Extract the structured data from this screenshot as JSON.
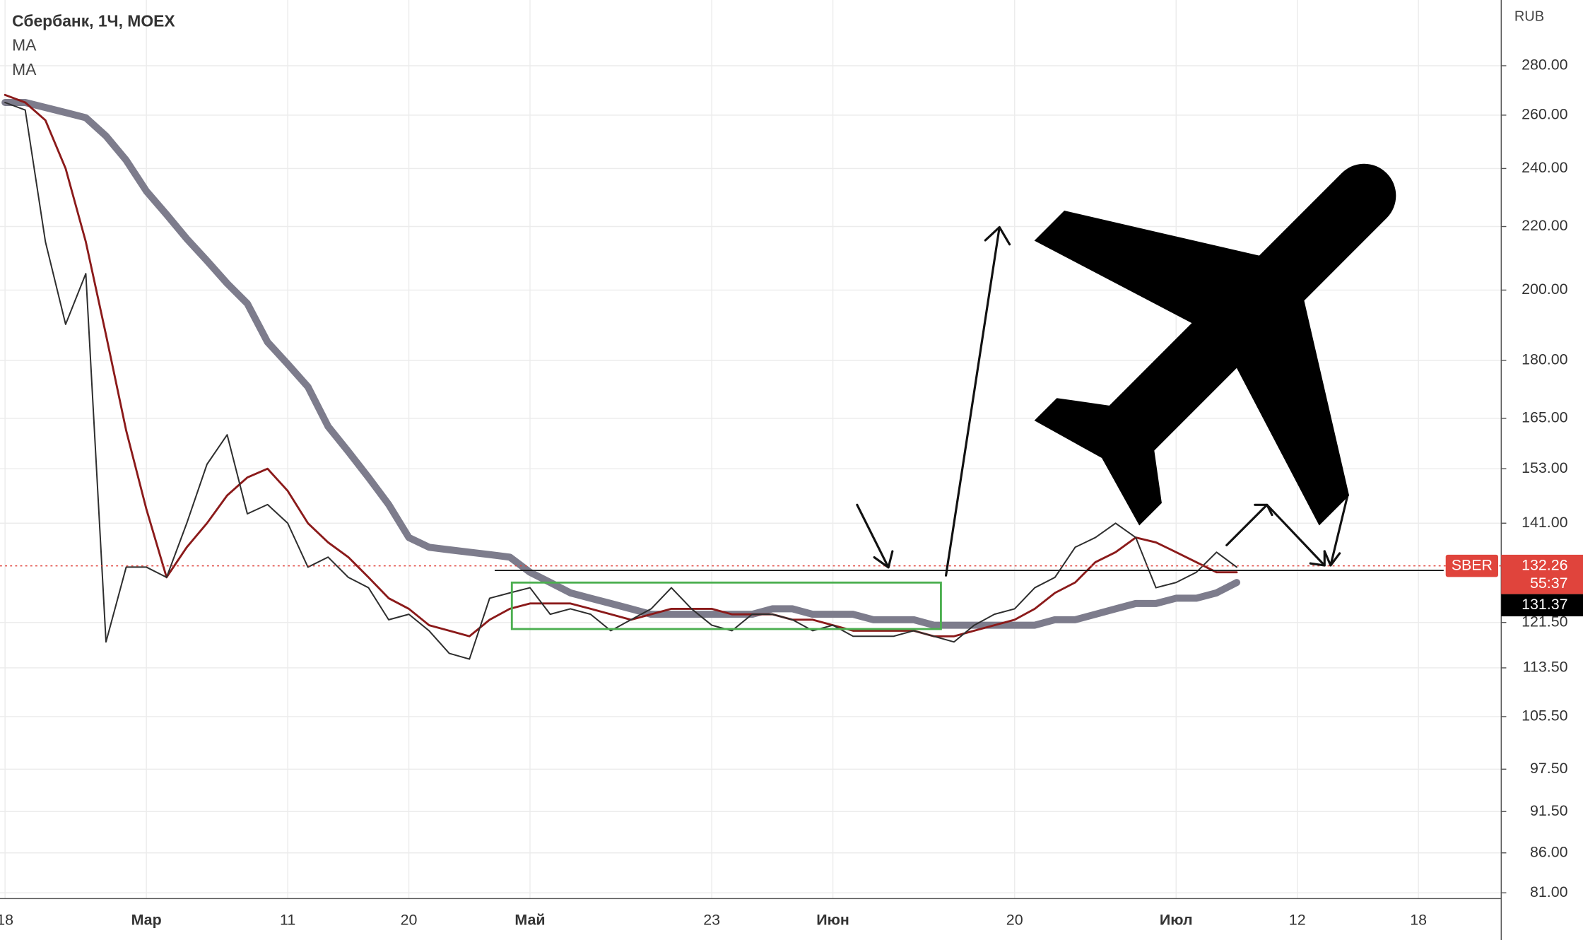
{
  "chart_data": {
    "type": "line",
    "title": "Сбербанк, 1Ч, MOEX",
    "currency": "RUB",
    "log_scale": true,
    "grid": true,
    "categories": [
      "18",
      null,
      null,
      null,
      null,
      null,
      null,
      "Мар",
      null,
      null,
      null,
      null,
      null,
      null,
      "11",
      null,
      null,
      null,
      null,
      null,
      "20",
      null,
      null,
      null,
      null,
      null,
      "Май",
      null,
      null,
      null,
      null,
      null,
      null,
      null,
      null,
      "23",
      null,
      null,
      null,
      null,
      null,
      "Июн",
      null,
      null,
      null,
      null,
      null,
      null,
      null,
      null,
      "20",
      null,
      null,
      null,
      null,
      null,
      null,
      null,
      "Июл",
      null,
      null,
      null,
      null,
      null,
      "12",
      null,
      null,
      null,
      null,
      null,
      "18",
      null,
      null,
      null,
      null
    ],
    "series": [
      {
        "color": "#2e2e2e",
        "values": [
          265,
          262,
          215,
          190,
          205,
          118,
          132,
          132,
          130,
          141,
          154,
          161,
          143,
          145,
          141,
          132,
          134,
          130,
          128,
          122,
          123,
          120,
          116,
          115,
          126,
          127,
          128,
          123,
          124,
          123,
          120,
          122,
          124,
          128,
          124,
          121,
          120,
          123,
          123,
          122,
          120,
          121,
          119,
          119,
          119,
          120,
          119,
          118,
          121,
          123,
          124,
          128,
          130,
          136,
          138,
          141,
          138,
          128,
          129,
          131,
          135,
          132,
          null,
          null,
          null,
          null,
          null,
          null,
          null,
          null,
          null,
          null,
          null,
          null,
          null
        ]
      },
      {
        "name": "MA",
        "color": "#8b1a1a",
        "values": [
          268,
          265,
          258,
          240,
          215,
          187,
          162,
          144,
          130,
          136,
          141,
          147,
          151,
          153,
          148,
          141,
          137,
          134,
          130,
          126,
          124,
          121,
          120,
          119,
          122,
          124,
          125,
          125,
          125,
          124,
          123,
          122,
          123,
          124,
          124,
          124,
          123,
          123,
          123,
          122,
          122,
          121,
          120,
          120,
          120,
          120,
          119,
          119,
          120,
          121,
          122,
          124,
          127,
          129,
          133,
          135,
          138,
          137,
          135,
          133,
          131,
          131,
          null,
          null,
          null,
          null,
          null,
          null,
          null,
          null,
          null,
          null,
          null,
          null,
          null
        ]
      },
      {
        "name": "MA",
        "color": "#7d7c8c",
        "values": [
          265,
          265,
          263,
          261,
          259,
          252,
          243,
          232,
          224,
          216,
          209,
          202,
          196,
          185,
          179,
          173,
          163,
          157,
          151,
          145,
          138,
          136,
          135.5,
          135,
          134.5,
          134,
          131,
          129,
          127,
          126,
          125,
          124,
          123,
          123,
          123,
          123,
          123,
          123,
          124,
          124,
          123,
          123,
          123,
          122,
          122,
          122,
          121,
          121,
          121,
          121,
          121,
          121,
          122,
          122,
          123,
          124,
          125,
          125,
          126,
          126,
          127,
          129,
          null,
          null,
          null,
          null,
          null,
          null,
          null,
          null,
          null,
          null,
          null,
          null,
          null
        ]
      }
    ],
    "ylim": [
      80.3,
      309
    ],
    "yticks": [
      {
        "value": 280,
        "label": "280.00"
      },
      {
        "value": 260,
        "label": "260.00"
      },
      {
        "value": 240,
        "label": "240.00"
      },
      {
        "value": 220,
        "label": "220.00"
      },
      {
        "value": 200,
        "label": "200.00"
      },
      {
        "value": 180,
        "label": "180.00"
      },
      {
        "value": 165,
        "label": "165.00"
      },
      {
        "value": 153,
        "label": "153.00"
      },
      {
        "value": 141,
        "label": "141.00"
      },
      {
        "value": 121.5,
        "label": "121.50"
      },
      {
        "value": 113.5,
        "label": "113.50"
      },
      {
        "value": 105.5,
        "label": "105.50"
      },
      {
        "value": 97.5,
        "label": "97.50"
      },
      {
        "value": 91.5,
        "label": "91.50"
      },
      {
        "value": 86,
        "label": "86.00"
      },
      {
        "value": 81,
        "label": "81.00"
      }
    ],
    "symbol": "SBER",
    "last_price": 132.26,
    "countdown": "55:37",
    "ma_last": 131.37
  }
}
